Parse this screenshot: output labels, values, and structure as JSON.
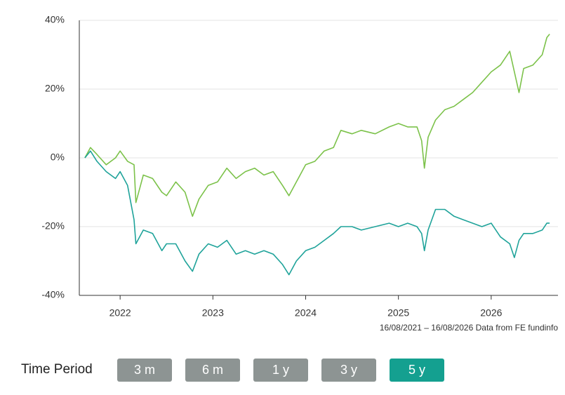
{
  "chart_data": {
    "type": "line",
    "x": [
      2021.62,
      2021.68,
      2021.75,
      2021.85,
      2021.95,
      2022.0,
      2022.08,
      2022.15,
      2022.17,
      2022.25,
      2022.35,
      2022.45,
      2022.5,
      2022.6,
      2022.7,
      2022.78,
      2022.85,
      2022.95,
      2023.05,
      2023.15,
      2023.25,
      2023.35,
      2023.45,
      2023.55,
      2023.65,
      2023.75,
      2023.82,
      2023.9,
      2024.0,
      2024.1,
      2024.2,
      2024.3,
      2024.38,
      2024.5,
      2024.6,
      2024.75,
      2024.9,
      2025.0,
      2025.1,
      2025.2,
      2025.25,
      2025.28,
      2025.32,
      2025.4,
      2025.5,
      2025.6,
      2025.7,
      2025.8,
      2025.9,
      2026.0,
      2026.1,
      2026.2,
      2026.25,
      2026.3,
      2026.35,
      2026.45,
      2026.55,
      2026.6,
      2026.63
    ],
    "series": [
      {
        "color": "#7cc24a",
        "values": [
          0,
          3,
          1,
          -2,
          0,
          2,
          -1,
          -2,
          -13,
          -5,
          -6,
          -10,
          -11,
          -7,
          -10,
          -17,
          -12,
          -8,
          -7,
          -3,
          -6,
          -4,
          -3,
          -5,
          -4,
          -8,
          -11,
          -7,
          -2,
          -1,
          2,
          3,
          8,
          7,
          8,
          7,
          9,
          10,
          9,
          9,
          5,
          -3,
          6,
          11,
          14,
          15,
          17,
          19,
          22,
          25,
          27,
          31,
          25,
          19,
          26,
          27,
          30,
          35,
          36
        ]
      },
      {
        "color": "#1fa39a",
        "values": [
          0,
          2,
          -1,
          -4,
          -6,
          -4,
          -8,
          -18,
          -25,
          -21,
          -22,
          -27,
          -25,
          -25,
          -30,
          -33,
          -28,
          -25,
          -26,
          -24,
          -28,
          -27,
          -28,
          -27,
          -28,
          -31,
          -34,
          -30,
          -27,
          -26,
          -24,
          -22,
          -20,
          -20,
          -21,
          -20,
          -19,
          -20,
          -19,
          -20,
          -22,
          -27,
          -21,
          -15,
          -15,
          -17,
          -18,
          -19,
          -20,
          -19,
          -23,
          -25,
          -29,
          -24,
          -22,
          -22,
          -21,
          -19,
          -19
        ]
      }
    ],
    "xlim": [
      2021.56,
      2026.72
    ],
    "xticks": [
      2022,
      2023,
      2024,
      2025,
      2026
    ],
    "ylim": [
      -40,
      40
    ],
    "yticks": [
      {
        "value": -40,
        "label": "-40%"
      },
      {
        "value": -20,
        "label": "-20%"
      },
      {
        "value": 0,
        "label": "0%"
      },
      {
        "value": 20,
        "label": "20%"
      },
      {
        "value": 40,
        "label": "40%"
      }
    ],
    "grid": true,
    "note": "16/08/2021 – 16/08/2026 Data from FE fundinfo"
  },
  "controls": {
    "label": "Time Period",
    "buttons": [
      "3 m",
      "6 m",
      "1 y",
      "3 y",
      "5 y"
    ],
    "active": 4
  }
}
